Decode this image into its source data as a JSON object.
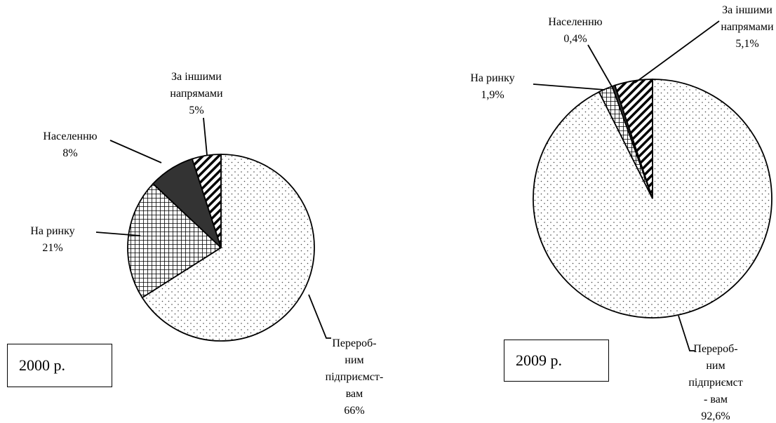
{
  "chart_data": [
    {
      "type": "pie",
      "label": "2000 р.",
      "categories": [
        "Перероб-\nним\nпідприємст-\nвам",
        "На ринку",
        "Населенню",
        "За іншими\nнапрямами"
      ],
      "values": [
        66,
        21,
        8,
        5
      ],
      "value_labels": [
        "66%",
        "21%",
        "8%",
        "5%"
      ],
      "patterns": [
        "dots",
        "grid",
        "solid",
        "diagonal"
      ]
    },
    {
      "type": "pie",
      "label": "2009 р.",
      "categories": [
        "Перероб-\nним\nпідприємст\n- вам",
        "На ринку",
        "Населенню",
        "За іншими\nнапрямами"
      ],
      "values": [
        92.6,
        1.9,
        0.4,
        5.1
      ],
      "value_labels": [
        "92,6%",
        "1,9%",
        "0,4%",
        "5,1%"
      ],
      "patterns": [
        "dots",
        "grid",
        "solid",
        "diagonal"
      ]
    }
  ]
}
